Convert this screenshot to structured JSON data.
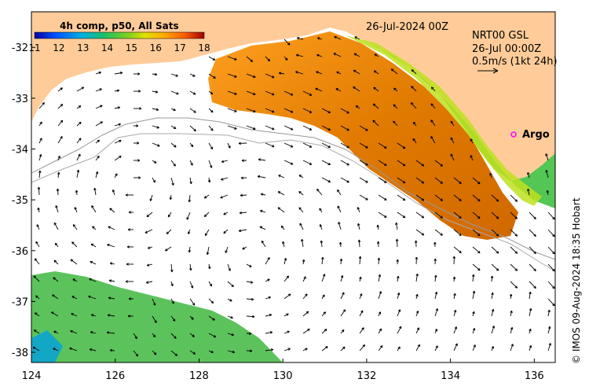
{
  "map": {
    "product_label": "4h comp, p50, All Sats",
    "date_label": "26-Jul-2024 00Z",
    "legend_lines": [
      "NRT00 GSL",
      "26-Jul 00:00Z",
      "0.5m/s (1kt 24h)"
    ],
    "colorbar_ticks": [
      "11",
      "12",
      "13",
      "14",
      "15",
      "16",
      "17",
      "18"
    ],
    "colorbar_min": 11,
    "colorbar_max": 18,
    "colormap": [
      "#0000a0",
      "#0040ff",
      "#00a0ff",
      "#00d0a0",
      "#40c040",
      "#a0e020",
      "#ffff00",
      "#ffc000",
      "#ff8000",
      "#e04000",
      "#a00000"
    ],
    "lon_ticks": [
      "124",
      "126",
      "128",
      "130",
      "132",
      "134",
      "136"
    ],
    "lat_ticks": [
      "-32",
      "-33",
      "-34",
      "-35",
      "-36",
      "-37",
      "-38"
    ],
    "lon_range": [
      124,
      136.5
    ],
    "lat_range": [
      -31.3,
      -38.2
    ],
    "argo_label": "Argo",
    "argo_marker_color": "#ff00ff",
    "credit": "© IMOS 09-Aug-2024 18:35 Hobart",
    "land_color": "#ffcc99"
  }
}
